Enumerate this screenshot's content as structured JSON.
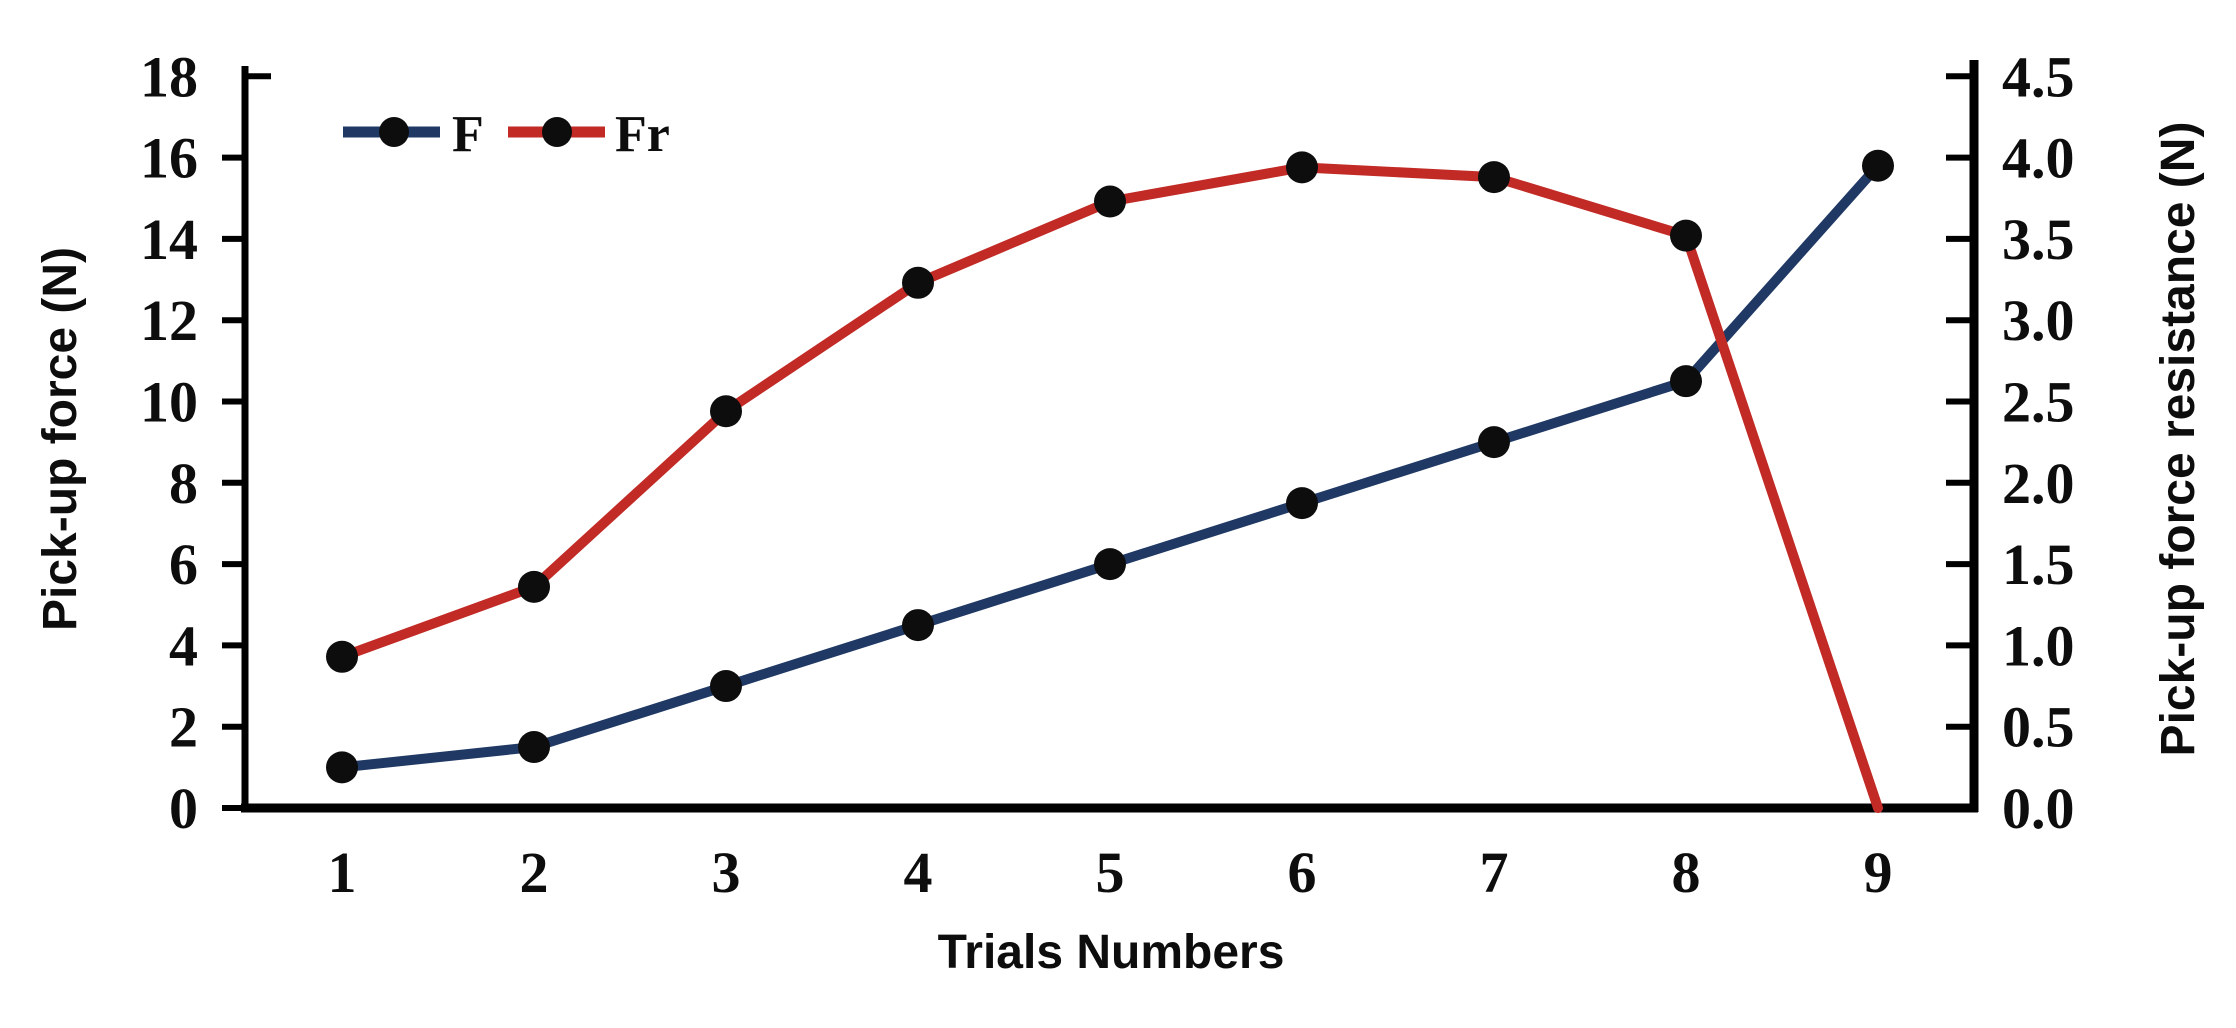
{
  "chart_data": {
    "type": "line",
    "title": "",
    "xlabel": "Trials Numbers",
    "x": [
      1,
      2,
      3,
      4,
      5,
      6,
      7,
      8,
      9
    ],
    "x_tick_labels": [
      "1",
      "2",
      "3",
      "4",
      "5",
      "6",
      "7",
      "8",
      "9"
    ],
    "left_axis": {
      "label": "Pick-up force (N)",
      "min": 0,
      "max": 18,
      "step": 2,
      "tick_labels": [
        "0",
        "2",
        "4",
        "6",
        "8",
        "10",
        "12",
        "14",
        "16",
        "18"
      ]
    },
    "right_axis": {
      "label": "Pick-up force resistance (N)",
      "min": 0,
      "max": 4.5,
      "step": 0.5,
      "tick_labels": [
        "0.0",
        "0.5",
        "1.0",
        "1.5",
        "2.0",
        "2.5",
        "3.0",
        "3.5",
        "4.0",
        "4.5"
      ]
    },
    "series": [
      {
        "name": "F",
        "axis": "left",
        "color": "#1f3864",
        "marker_color": "#0d0d0d",
        "values": [
          1.0,
          1.5,
          3.0,
          4.5,
          6.0,
          7.5,
          9.0,
          10.5,
          15.8
        ],
        "last_point_marker": true
      },
      {
        "name": "Fr",
        "axis": "right",
        "color": "#c22a26",
        "marker_color": "#0d0d0d",
        "values": [
          0.93,
          1.36,
          2.44,
          3.23,
          3.73,
          3.94,
          3.88,
          3.52,
          0.0
        ],
        "last_point_marker": false
      }
    ],
    "legend": {
      "position": "top-left",
      "entries": [
        "F",
        "Fr"
      ]
    },
    "grid": false,
    "axis_color": "#000000",
    "background": "#ffffff"
  }
}
